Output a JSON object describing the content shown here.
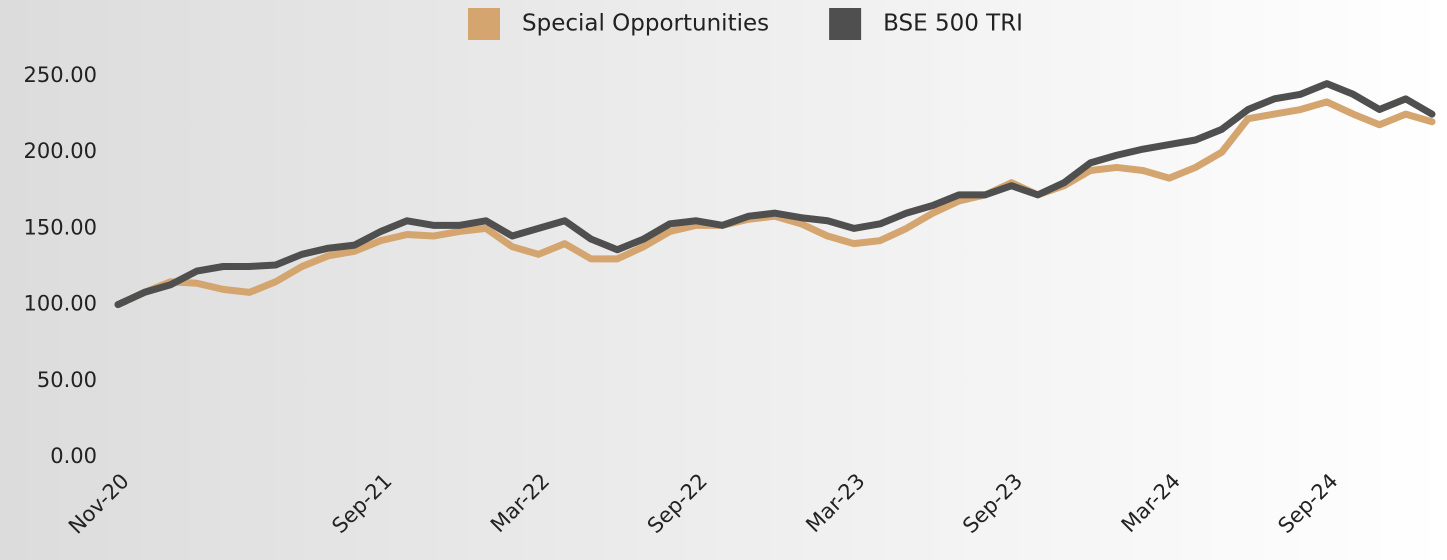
{
  "chart_data": {
    "type": "line",
    "categories": [
      "Nov-20",
      null,
      null,
      null,
      null,
      null,
      null,
      null,
      null,
      null,
      "Sep-21",
      null,
      null,
      null,
      null,
      null,
      "Mar-22",
      null,
      null,
      null,
      null,
      null,
      "Sep-22",
      null,
      null,
      null,
      null,
      null,
      "Mar-23",
      null,
      null,
      null,
      null,
      null,
      "Sep-23",
      null,
      null,
      null,
      null,
      null,
      "Mar-24",
      null,
      null,
      null,
      null,
      null,
      "Sep-24",
      null,
      null,
      null,
      null
    ],
    "series": [
      {
        "name": "Special Opportunities",
        "color": "#d4a56f",
        "values": [
          100,
          108,
          115,
          114,
          110,
          108,
          115,
          125,
          132,
          135,
          142,
          146,
          145,
          148,
          150,
          138,
          133,
          140,
          130,
          130,
          138,
          148,
          152,
          152,
          156,
          158,
          153,
          145,
          140,
          142,
          150,
          160,
          168,
          172,
          180,
          172,
          178,
          188,
          190,
          188,
          183,
          190,
          200,
          222,
          225,
          228,
          233,
          225,
          218,
          225,
          220
        ]
      },
      {
        "name": "BSE 500 TRI",
        "color": "#4f4f4f",
        "values": [
          100,
          108,
          113,
          122,
          125,
          125,
          126,
          133,
          137,
          139,
          148,
          155,
          152,
          152,
          155,
          145,
          150,
          155,
          143,
          136,
          143,
          153,
          155,
          152,
          158,
          160,
          157,
          155,
          150,
          153,
          160,
          165,
          172,
          172,
          178,
          172,
          180,
          193,
          198,
          202,
          205,
          208,
          215,
          228,
          235,
          238,
          245,
          238,
          228,
          235,
          225
        ]
      }
    ],
    "ylim": [
      0,
      250
    ],
    "yticks": [
      {
        "value": 0,
        "label": "0.00"
      },
      {
        "value": 50,
        "label": "50.00"
      },
      {
        "value": 100,
        "label": "100.00"
      },
      {
        "value": 150,
        "label": "150.00"
      },
      {
        "value": 200,
        "label": "200.00"
      },
      {
        "value": 250,
        "label": "250.00"
      }
    ],
    "legend": "top"
  }
}
